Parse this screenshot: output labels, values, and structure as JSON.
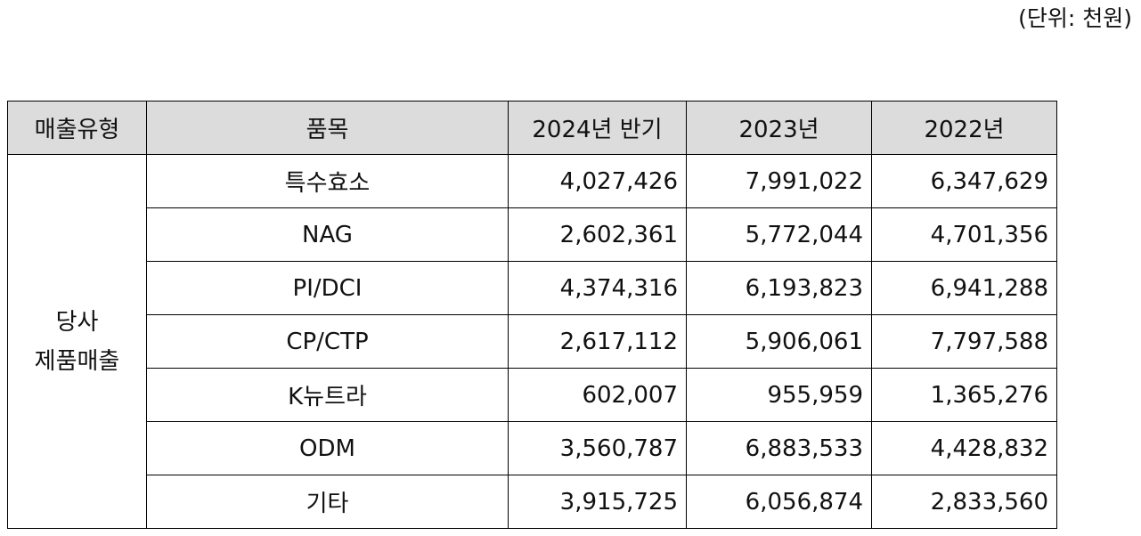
{
  "unit_note": "(단위: 천원)",
  "table": {
    "headers": [
      "매출유형",
      "품목",
      "2024년 반기",
      "2023년",
      "2022년"
    ],
    "category": {
      "line1": "당사",
      "line2": "제품매출"
    },
    "rows": [
      {
        "item": "특수효소",
        "v2024h": "4,027,426",
        "v2023": "7,991,022",
        "v2022": "6,347,629"
      },
      {
        "item": "NAG",
        "v2024h": "2,602,361",
        "v2023": "5,772,044",
        "v2022": "4,701,356"
      },
      {
        "item": "PI/DCI",
        "v2024h": "4,374,316",
        "v2023": "6,193,823",
        "v2022": "6,941,288"
      },
      {
        "item": "CP/CTP",
        "v2024h": "2,617,112",
        "v2023": "5,906,061",
        "v2022": "7,797,588"
      },
      {
        "item": "K뉴트라",
        "v2024h": "602,007",
        "v2023": "955,959",
        "v2022": "1,365,276"
      },
      {
        "item": "ODM",
        "v2024h": "3,560,787",
        "v2023": "6,883,533",
        "v2022": "4,428,832"
      },
      {
        "item": "기타",
        "v2024h": "3,915,725",
        "v2023": "6,056,874",
        "v2022": "2,833,560"
      }
    ]
  }
}
